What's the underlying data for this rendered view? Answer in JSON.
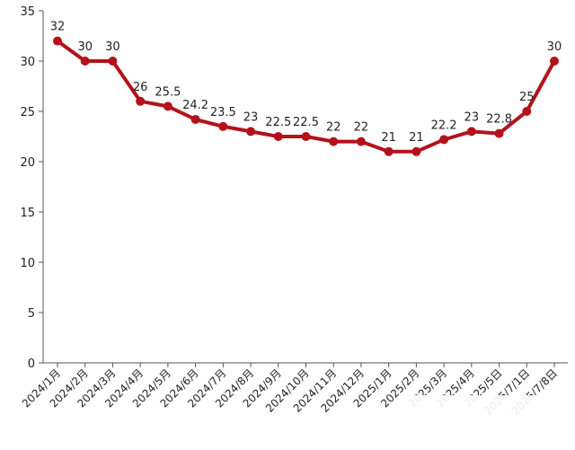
{
  "chart_data": {
    "type": "line",
    "categories": [
      "2024/1月",
      "2024/2月",
      "2024/3月",
      "2024/4月",
      "2024/5月",
      "2024/6月",
      "2024/7月",
      "2024/8月",
      "2024/9月",
      "2024/10月",
      "2024/11月",
      "2024/12月",
      "2025/1月",
      "2025/2月",
      "2025/3月",
      "2025/4月",
      "2025/5日",
      "2025/7/1日",
      "2025/7/8日"
    ],
    "series": [
      {
        "values": [
          32,
          30,
          30,
          26,
          25.5,
          24.2,
          23.5,
          23,
          22.5,
          22.5,
          22,
          22,
          21,
          21,
          22.2,
          23,
          22.8,
          25,
          30
        ]
      }
    ],
    "value_labels": [
      "32",
      "30",
      "30",
      "26",
      "25.5",
      "24.2",
      "23.5",
      "23",
      "22.5",
      "22.5",
      "22",
      "22",
      "21",
      "21",
      "22.2",
      "23",
      "22.8",
      "25",
      "30"
    ],
    "ylim": [
      0,
      35
    ],
    "yticks": [
      0,
      5,
      10,
      15,
      20,
      25,
      30,
      35
    ],
    "line_color": "#B3121B",
    "grid": false,
    "title": "",
    "xlabel": "",
    "ylabel": ""
  }
}
